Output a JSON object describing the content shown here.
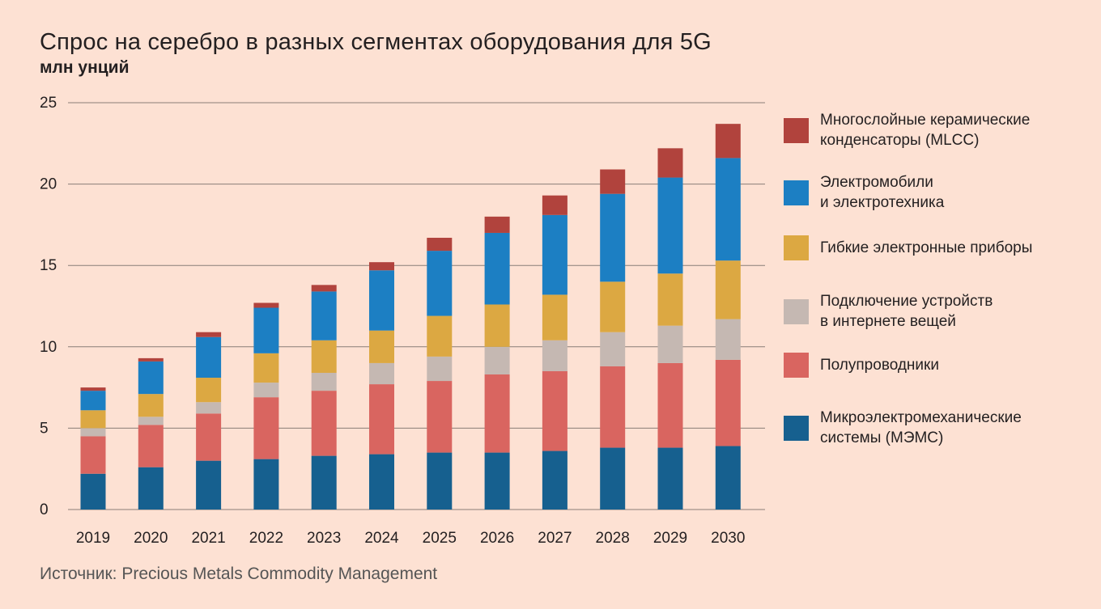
{
  "title": "Спрос на серебро в разных сегментах оборудования для 5G",
  "subtitle": "млн унций",
  "source": "Источник: Precious Metals Commodity Management",
  "chart_data": {
    "type": "bar",
    "stacked": true,
    "title": "Спрос на серебро в разных сегментах оборудования для 5G",
    "ylabel": "млн унций",
    "xlabel": "",
    "ylim": [
      0,
      25
    ],
    "yticks": [
      0,
      5,
      10,
      15,
      20,
      25
    ],
    "grid": true,
    "legend_position": "right",
    "categories": [
      "2019",
      "2020",
      "2021",
      "2022",
      "2023",
      "2024",
      "2025",
      "2026",
      "2027",
      "2028",
      "2029",
      "2030"
    ],
    "series": [
      {
        "name": "Микроэлектромеханические\nсистемы (МЭМС)",
        "color": "#16608f",
        "values": [
          2.2,
          2.6,
          3.0,
          3.1,
          3.3,
          3.4,
          3.5,
          3.5,
          3.6,
          3.8,
          3.8,
          3.9
        ]
      },
      {
        "name": "Полупроводники",
        "color": "#d96560",
        "values": [
          2.3,
          2.6,
          2.9,
          3.8,
          4.0,
          4.3,
          4.4,
          4.8,
          4.9,
          5.0,
          5.2,
          5.3
        ]
      },
      {
        "name": "Подключение устройств\nв интернете вещей",
        "color": "#c5b8b2",
        "values": [
          0.5,
          0.5,
          0.7,
          0.9,
          1.1,
          1.3,
          1.5,
          1.7,
          1.9,
          2.1,
          2.3,
          2.5
        ]
      },
      {
        "name": "Гибкие электронные приборы",
        "color": "#dca842",
        "values": [
          1.1,
          1.4,
          1.5,
          1.8,
          2.0,
          2.0,
          2.5,
          2.6,
          2.8,
          3.1,
          3.2,
          3.6
        ]
      },
      {
        "name": "Электромобили\nи электротехника",
        "color": "#1c7fc3",
        "values": [
          1.2,
          2.0,
          2.5,
          2.8,
          3.0,
          3.7,
          4.0,
          4.4,
          4.9,
          5.4,
          5.9,
          6.3
        ]
      },
      {
        "name": "Многослойные керамические\nконденсаторы (MLCC)",
        "color": "#b1433d",
        "values": [
          0.2,
          0.2,
          0.3,
          0.3,
          0.4,
          0.5,
          0.8,
          1.0,
          1.2,
          1.5,
          1.8,
          2.1
        ]
      }
    ]
  },
  "legend": [
    {
      "label": "Многослойные керамические\nконденсаторы (MLCC)",
      "color": "#b1433d"
    },
    {
      "label": "Электромобили\nи электротехника",
      "color": "#1c7fc3"
    },
    {
      "label": "Гибкие электронные приборы",
      "color": "#dca842"
    },
    {
      "label": "Подключение устройств\nв интернете вещей",
      "color": "#c5b8b2"
    },
    {
      "label": "Полупроводники",
      "color": "#d96560"
    },
    {
      "label": "Микроэлектромеханические\nсистемы (МЭМС)",
      "color": "#16608f"
    }
  ]
}
